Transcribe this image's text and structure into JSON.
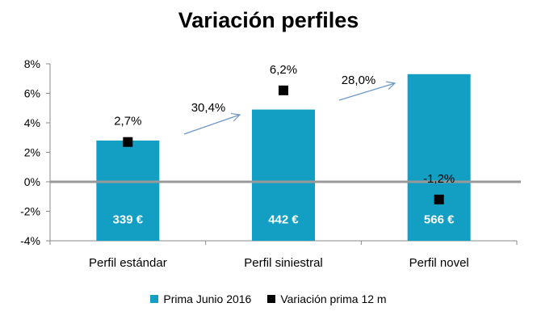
{
  "chart_data": {
    "type": "bar",
    "title": "Variación perfiles",
    "categories": [
      "Perfil estándar",
      "Perfil siniestral",
      "Perfil novel"
    ],
    "ylim": [
      -4,
      8
    ],
    "yticks": [
      "-4%",
      "-2%",
      "0%",
      "2%",
      "4%",
      "6%",
      "8%"
    ],
    "ytick_values": [
      -4,
      -2,
      0,
      2,
      4,
      6,
      8
    ],
    "series": [
      {
        "name": "Prima Junio 2016",
        "kind": "bar",
        "color": "#129fc3",
        "plotted_values": [
          2.8,
          4.9,
          7.3
        ],
        "labels": [
          "339 €",
          "442 €",
          "566 €"
        ]
      },
      {
        "name": "Variación prima 12 m",
        "kind": "marker",
        "color": "#000000",
        "values": [
          2.7,
          6.2,
          -1.2
        ],
        "labels": [
          "2,7%",
          "6,2%",
          "-1,2%"
        ]
      }
    ],
    "arrows": [
      {
        "from": "Perfil estándar",
        "to": "Perfil siniestral",
        "label": "30,4%",
        "color": "#6d97c9"
      },
      {
        "from": "Perfil siniestral",
        "to": "Perfil novel",
        "label": "28,0%",
        "color": "#6d97c9"
      }
    ],
    "zero_line_color": "#999999",
    "grid": false,
    "legend_position": "bottom"
  }
}
